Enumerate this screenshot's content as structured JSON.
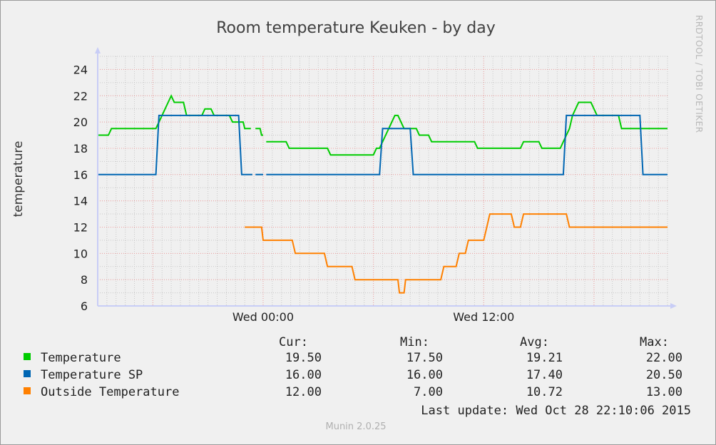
{
  "chart_data": {
    "type": "line",
    "title": "Room temperature Keuken - by day",
    "ylabel": "temperature",
    "side_text": "RRDTOOL / TOBI OETIKER",
    "ylim": [
      6,
      25
    ],
    "y_ticks": [
      6,
      8,
      10,
      12,
      14,
      16,
      18,
      20,
      22,
      24
    ],
    "xlim": [
      "Tue 15:00",
      "Wed 22:00"
    ],
    "x_ticks": [
      {
        "label": "Wed 00:00",
        "x": "Wed 00:00"
      },
      {
        "label": "Wed 12:00",
        "x": "Wed 12:00"
      }
    ],
    "grid": true,
    "series": [
      {
        "name": "Temperature",
        "color": "#00cc00",
        "points": [
          [
            "Tue 15:00",
            19.0
          ],
          [
            "Tue 15:35",
            19.0
          ],
          [
            "Tue 15:45",
            19.5
          ],
          [
            "Tue 18:10",
            19.5
          ],
          [
            "Tue 18:20",
            20.0
          ],
          [
            "Tue 18:30",
            20.5
          ],
          [
            "Tue 18:40",
            21.0
          ],
          [
            "Tue 18:50",
            21.5
          ],
          [
            "Tue 19:00",
            22.0
          ],
          [
            "Tue 19:10",
            21.5
          ],
          [
            "Tue 19:40",
            21.5
          ],
          [
            "Tue 19:50",
            20.5
          ],
          [
            "Tue 20:40",
            20.5
          ],
          [
            "Tue 20:50",
            21.0
          ],
          [
            "Tue 21:10",
            21.0
          ],
          [
            "Tue 21:20",
            20.5
          ],
          [
            "Tue 22:10",
            20.5
          ],
          [
            "Tue 22:20",
            20.0
          ],
          [
            "Tue 22:55",
            20.0
          ],
          [
            "Tue 23:00",
            19.5
          ],
          [
            "Tue 23:20",
            19.5
          ],
          [
            "Tue 23:25",
            null
          ],
          [
            "Tue 23:35",
            19.5
          ],
          [
            "Tue 23:50",
            19.5
          ],
          [
            "Tue 23:55",
            19.0
          ],
          [
            "Wed 00:00",
            19.0
          ],
          [
            "Wed 00:05",
            null
          ],
          [
            "Wed 00:10",
            18.5
          ],
          [
            "Wed 01:15",
            18.5
          ],
          [
            "Wed 01:25",
            18.0
          ],
          [
            "Wed 03:30",
            18.0
          ],
          [
            "Wed 03:40",
            17.5
          ],
          [
            "Wed 06:00",
            17.5
          ],
          [
            "Wed 06:10",
            18.0
          ],
          [
            "Wed 06:20",
            18.0
          ],
          [
            "Wed 06:30",
            18.5
          ],
          [
            "Wed 06:40",
            19.0
          ],
          [
            "Wed 06:50",
            19.5
          ],
          [
            "Wed 07:00",
            20.0
          ],
          [
            "Wed 07:10",
            20.5
          ],
          [
            "Wed 07:20",
            20.5
          ],
          [
            "Wed 07:30",
            20.0
          ],
          [
            "Wed 07:40",
            19.5
          ],
          [
            "Wed 08:20",
            19.5
          ],
          [
            "Wed 08:30",
            19.0
          ],
          [
            "Wed 09:00",
            19.0
          ],
          [
            "Wed 09:10",
            18.5
          ],
          [
            "Wed 11:30",
            18.5
          ],
          [
            "Wed 11:40",
            18.0
          ],
          [
            "Wed 14:00",
            18.0
          ],
          [
            "Wed 14:10",
            18.5
          ],
          [
            "Wed 15:00",
            18.5
          ],
          [
            "Wed 15:10",
            18.0
          ],
          [
            "Wed 16:10",
            18.0
          ],
          [
            "Wed 16:20",
            18.5
          ],
          [
            "Wed 16:30",
            19.0
          ],
          [
            "Wed 16:40",
            19.5
          ],
          [
            "Wed 16:50",
            20.5
          ],
          [
            "Wed 17:00",
            21.0
          ],
          [
            "Wed 17:10",
            21.5
          ],
          [
            "Wed 17:50",
            21.5
          ],
          [
            "Wed 18:00",
            21.0
          ],
          [
            "Wed 18:10",
            20.5
          ],
          [
            "Wed 19:20",
            20.5
          ],
          [
            "Wed 19:30",
            19.5
          ],
          [
            "Wed 22:00",
            19.5
          ]
        ]
      },
      {
        "name": "Temperature SP",
        "color": "#0066b3",
        "points": [
          [
            "Tue 15:00",
            16.0
          ],
          [
            "Tue 18:10",
            16.0
          ],
          [
            "Tue 18:20",
            20.5
          ],
          [
            "Tue 22:40",
            20.5
          ],
          [
            "Tue 22:50",
            16.0
          ],
          [
            "Tue 23:25",
            16.0
          ],
          [
            "Tue 23:30",
            null
          ],
          [
            "Tue 23:35",
            16.0
          ],
          [
            "Wed 00:00",
            16.0
          ],
          [
            "Wed 00:05",
            null
          ],
          [
            "Wed 00:10",
            16.0
          ],
          [
            "Wed 06:20",
            16.0
          ],
          [
            "Wed 06:30",
            19.5
          ],
          [
            "Wed 08:00",
            19.5
          ],
          [
            "Wed 08:10",
            16.0
          ],
          [
            "Wed 16:20",
            16.0
          ],
          [
            "Wed 16:30",
            20.5
          ],
          [
            "Wed 20:30",
            20.5
          ],
          [
            "Wed 20:40",
            16.0
          ],
          [
            "Wed 22:00",
            16.0
          ]
        ]
      },
      {
        "name": "Outside Temperature",
        "color": "#ff8000",
        "points": [
          [
            "Tue 23:00",
            12.0
          ],
          [
            "Tue 23:55",
            12.0
          ],
          [
            "Wed 00:00",
            11.0
          ],
          [
            "Wed 01:35",
            11.0
          ],
          [
            "Wed 01:45",
            10.0
          ],
          [
            "Wed 03:20",
            10.0
          ],
          [
            "Wed 03:30",
            9.0
          ],
          [
            "Wed 04:50",
            9.0
          ],
          [
            "Wed 05:00",
            8.0
          ],
          [
            "Wed 07:20",
            8.0
          ],
          [
            "Wed 07:25",
            7.0
          ],
          [
            "Wed 07:40",
            7.0
          ],
          [
            "Wed 07:45",
            8.0
          ],
          [
            "Wed 09:40",
            8.0
          ],
          [
            "Wed 09:50",
            9.0
          ],
          [
            "Wed 10:30",
            9.0
          ],
          [
            "Wed 10:40",
            10.0
          ],
          [
            "Wed 11:00",
            10.0
          ],
          [
            "Wed 11:10",
            11.0
          ],
          [
            "Wed 12:00",
            11.0
          ],
          [
            "Wed 12:10",
            12.0
          ],
          [
            "Wed 12:20",
            13.0
          ],
          [
            "Wed 13:30",
            13.0
          ],
          [
            "Wed 13:40",
            12.0
          ],
          [
            "Wed 14:00",
            12.0
          ],
          [
            "Wed 14:10",
            13.0
          ],
          [
            "Wed 16:30",
            13.0
          ],
          [
            "Wed 16:40",
            12.0
          ],
          [
            "Wed 22:00",
            12.0
          ]
        ]
      }
    ]
  },
  "legend": {
    "headers": [
      "Cur:",
      "Min:",
      "Avg:",
      "Max:"
    ],
    "rows": [
      {
        "name": "Temperature",
        "color": "#00cc00",
        "cur": "19.50",
        "min": "17.50",
        "avg": "19.21",
        "max": "22.00"
      },
      {
        "name": "Temperature SP",
        "color": "#0066b3",
        "cur": "16.00",
        "min": "16.00",
        "avg": "17.40",
        "max": "20.50"
      },
      {
        "name": "Outside Temperature",
        "color": "#ff8000",
        "cur": "12.00",
        "min": "7.00",
        "avg": "10.72",
        "max": "13.00"
      }
    ],
    "last_update": "Last update: Wed Oct 28 22:10:06 2015"
  },
  "footer": "Munin 2.0.25"
}
